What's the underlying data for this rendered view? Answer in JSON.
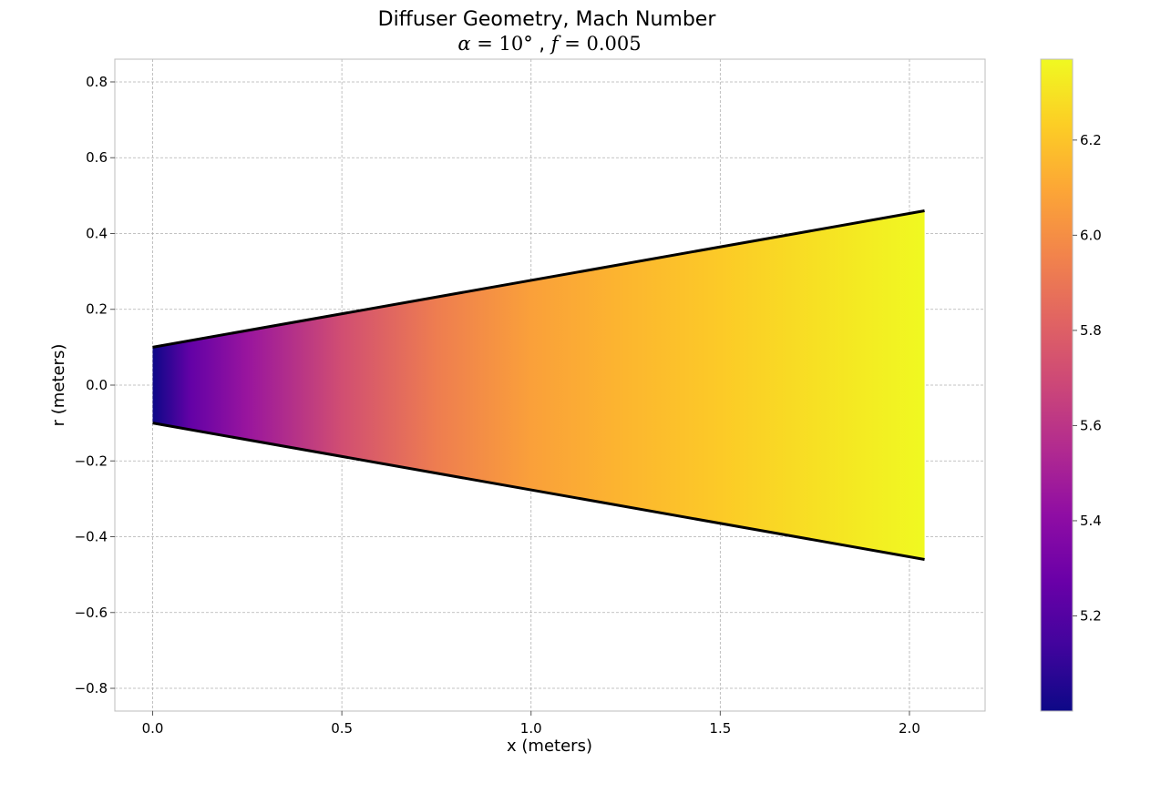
{
  "chart_data": {
    "type": "heatmap",
    "title": "Diffuser Geometry, Mach Number",
    "subtitle": "α = 10° , f = 0.005",
    "subtitle_parts": {
      "alpha_symbol": "α",
      "alpha_eq": " = 10°",
      "sep": " , ",
      "f_symbol": "f",
      "f_eq": " = 0.005"
    },
    "xlabel": "x (meters)",
    "ylabel": "r (meters)",
    "xlim": [
      -0.1,
      2.2
    ],
    "ylim": [
      -0.86,
      0.86
    ],
    "x_ticks": [
      0.0,
      0.5,
      1.0,
      1.5,
      2.0
    ],
    "x_tick_labels": [
      "0.0",
      "0.5",
      "1.0",
      "1.5",
      "2.0"
    ],
    "y_ticks": [
      0.8,
      0.6,
      0.4,
      0.2,
      0.0,
      -0.2,
      -0.4,
      -0.6,
      -0.8
    ],
    "y_tick_labels": [
      "0.8",
      "0.6",
      "0.4",
      "0.2",
      "0.0",
      "−0.2",
      "−0.4",
      "−0.6",
      "−0.8"
    ],
    "grid": true,
    "colormap": "plasma",
    "geometry": {
      "x_inlet": 0.0,
      "x_outlet": 2.04,
      "r_inlet": 0.1,
      "r_outlet": 0.46
    },
    "mach_profile": {
      "x": [
        0.0,
        0.1,
        0.25,
        0.5,
        0.75,
        1.0,
        1.25,
        1.5,
        1.75,
        2.04
      ],
      "mach": [
        5.0,
        5.25,
        5.45,
        5.72,
        5.93,
        6.07,
        6.15,
        6.22,
        6.29,
        6.37
      ]
    },
    "colorbar": {
      "range": [
        5.0,
        6.37
      ],
      "ticks": [
        5.2,
        5.4,
        5.6,
        5.8,
        6.0,
        6.2
      ],
      "tick_labels": [
        "5.2",
        "5.4",
        "5.6",
        "5.8",
        "6.0",
        "6.2"
      ]
    }
  }
}
